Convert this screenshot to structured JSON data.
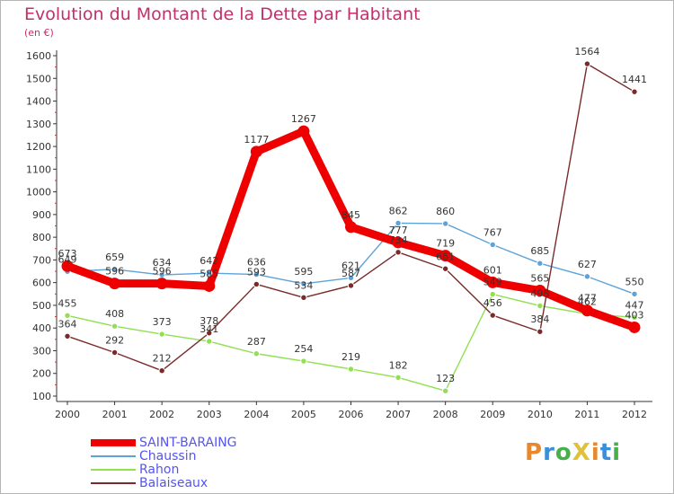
{
  "header": {
    "title": "Evolution du Montant de la Dette par Habitant",
    "subtitle": "(en €)"
  },
  "logo": {
    "text": "ProXiti",
    "colors": [
      "#e8882c",
      "#3b8fd6",
      "#48b048",
      "#e0c23a"
    ]
  },
  "chart_data": {
    "type": "line",
    "title": "Evolution du Montant de la Dette par Habitant",
    "subtitle": "(en €)",
    "x": [
      "2000",
      "2001",
      "2002",
      "2003",
      "2004",
      "2005",
      "2006",
      "2007",
      "2008",
      "2009",
      "2010",
      "2011",
      "2012"
    ],
    "y_ticks": [
      100,
      200,
      300,
      400,
      500,
      600,
      700,
      800,
      900,
      1000,
      1100,
      1200,
      1300,
      1400,
      1500,
      1600
    ],
    "ylim": [
      100,
      1600
    ],
    "grid": false,
    "legend_position": "bottom-left",
    "series": [
      {
        "name": "SAINT-BARAING",
        "color": "#ee0000",
        "width": "thick",
        "values": [
          673,
          596,
          596,
          585,
          1177,
          1267,
          845,
          777,
          719,
          601,
          565,
          477,
          403
        ]
      },
      {
        "name": "Chaussin",
        "color": "#5da3d8",
        "width": "thin",
        "values": [
          649,
          659,
          634,
          642,
          636,
          595,
          621,
          862,
          860,
          767,
          685,
          627,
          550
        ]
      },
      {
        "name": "Rahon",
        "color": "#90e050",
        "width": "thin",
        "values": [
          455,
          408,
          373,
          341,
          287,
          254,
          219,
          182,
          123,
          549,
          498,
          462,
          447
        ]
      },
      {
        "name": "Balaiseaux",
        "color": "#7a2a2a",
        "width": "thin",
        "values": [
          364,
          292,
          212,
          378,
          593,
          534,
          587,
          734,
          661,
          456,
          384,
          1564,
          1441
        ]
      }
    ]
  }
}
